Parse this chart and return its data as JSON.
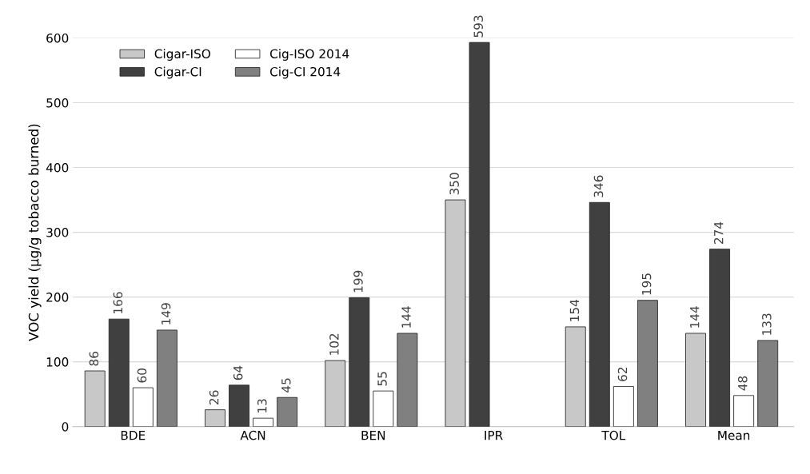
{
  "chart_data": {
    "type": "bar",
    "ylabel": "VOC yield (µg/g tobacco burned)",
    "categories": [
      "BDE",
      "ACN",
      "BEN",
      "IPR",
      "TOL",
      "Mean"
    ],
    "series": [
      {
        "name": "Cigar-ISO",
        "color": "#c8c8c8",
        "values": [
          86,
          26,
          102,
          350,
          154,
          144
        ]
      },
      {
        "name": "Cigar-CI",
        "color": "#404040",
        "values": [
          166,
          64,
          199,
          593,
          346,
          274
        ]
      },
      {
        "name": "Cig-ISO 2014",
        "color": "#ffffff",
        "values": [
          60,
          13,
          55,
          null,
          62,
          48
        ]
      },
      {
        "name": "Cig-CI 2014",
        "color": "#808080",
        "values": [
          149,
          45,
          144,
          null,
          195,
          133
        ]
      }
    ],
    "ylim": [
      0,
      600
    ],
    "yticks": [
      0,
      100,
      200,
      300,
      400,
      500,
      600
    ],
    "grid": "y",
    "legend": "top left",
    "data_labels": true
  }
}
